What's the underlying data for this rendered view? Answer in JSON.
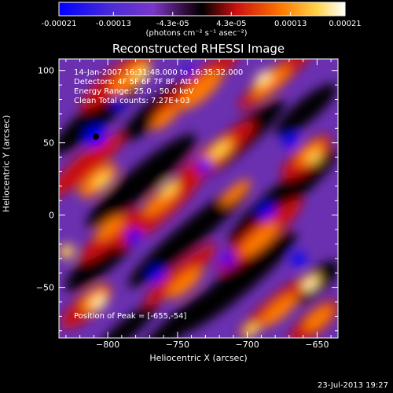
{
  "colorbar": {
    "ticks": [
      "-0.00021",
      "-0.00013",
      "-4.3e-05",
      "4.3e-05",
      "0.00013",
      "0.00021"
    ],
    "tick_values": [
      -0.00021,
      -0.00013,
      -4.3e-05,
      4.3e-05,
      0.00013,
      0.00021
    ],
    "range": [
      -0.00021,
      0.00021
    ],
    "unit_label": "(photons cm⁻² s⁻¹ asec⁻²)"
  },
  "title": "Reconstructed RHESSI Image",
  "annotations": {
    "time_range": "14-Jan-2007 16:31:48.000 to 16:35:32.000",
    "detectors": "Detectors: 4F 5F 6F 7F 8F, Att 0",
    "energy": "Energy Range: 25.0 - 50.0 keV",
    "method": "Clean     Total counts: 7.27E+03",
    "peak": "Position of Peak = [-655,-54]"
  },
  "chart_data": {
    "type": "heatmap",
    "title": "Reconstructed RHESSI Image",
    "xlabel": "Heliocentric X (arcsec)",
    "ylabel": "Heliocentric Y (arcsec)",
    "xlim": [
      -835,
      -635
    ],
    "ylim": [
      -85,
      108
    ],
    "xticks": [
      -800,
      -750,
      -700,
      -650
    ],
    "yticks": [
      -50,
      0,
      50,
      100
    ],
    "grid": false,
    "colormap": "blue-purple-black-red-orange-yellow-white",
    "colors": {
      "min": "#0000ff",
      "low": "#7a36c8",
      "zero": "#000000",
      "mid": "#cc1010",
      "high": "#ff7a00",
      "upper": "#ffd24a",
      "max": "#ffffff"
    },
    "peak_position": [
      -655,
      -54
    ]
  },
  "footer": {
    "date": "23-Jul-2013 19:27"
  }
}
